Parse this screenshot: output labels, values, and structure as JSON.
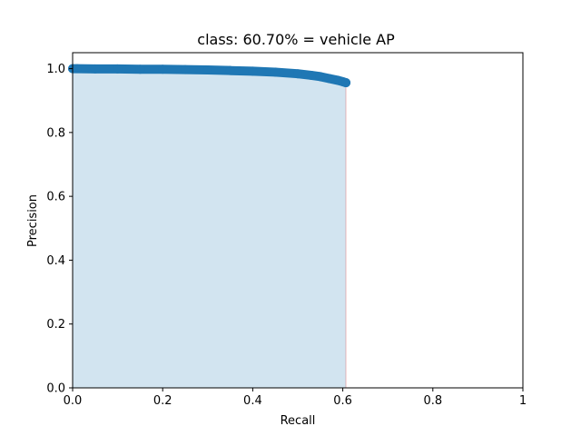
{
  "chart_data": {
    "type": "area",
    "title": "class: 60.70% = vehicle AP",
    "xlabel": "Recall",
    "ylabel": "Precision",
    "xlim": [
      0,
      1
    ],
    "ylim": [
      0,
      1.05
    ],
    "xticks": [
      0,
      0.2,
      0.4,
      0.6,
      0.8,
      1
    ],
    "xtick_labels": [
      "0.0",
      "0.2",
      "0.4",
      "0.6",
      "0.8",
      "1"
    ],
    "yticks": [
      0,
      0.2,
      0.4,
      0.6,
      0.8,
      1.0
    ],
    "ytick_labels": [
      "0.0",
      "0.2",
      "0.4",
      "0.6",
      "0.8",
      "1.0"
    ],
    "grid": false,
    "series": [
      {
        "type": "line-with-markers",
        "color": "#1f77b4",
        "fill_color": "#1f77b4",
        "fill_alpha": 0.2,
        "x": [
          0.0,
          0.01,
          0.05,
          0.1,
          0.15,
          0.2,
          0.25,
          0.3,
          0.35,
          0.4,
          0.45,
          0.5,
          0.53,
          0.55,
          0.57,
          0.59,
          0.6,
          0.607
        ],
        "y": [
          1.0,
          1.0,
          0.999,
          0.999,
          0.998,
          0.998,
          0.997,
          0.996,
          0.994,
          0.992,
          0.989,
          0.984,
          0.979,
          0.975,
          0.969,
          0.963,
          0.959,
          0.956
        ]
      }
    ],
    "drop_line": {
      "x": 0.607,
      "color": "#d62728",
      "alpha": 0.2
    }
  }
}
